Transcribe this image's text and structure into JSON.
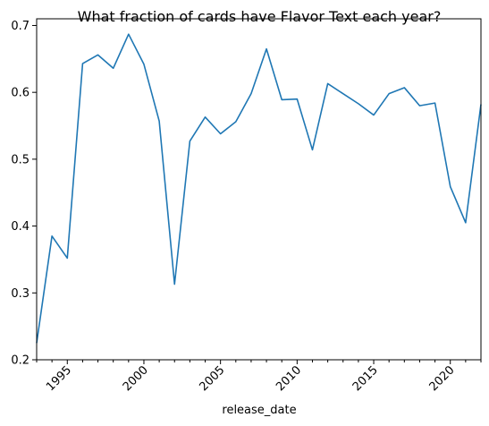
{
  "chart_data": {
    "type": "line",
    "title": "What fraction of cards have Flavor Text each year?",
    "xlabel": "release_date",
    "ylabel": "",
    "xlim": [
      1993,
      2022
    ],
    "ylim": [
      0.2,
      0.71
    ],
    "x_ticks": [
      {
        "value": 1995,
        "label": "1995"
      },
      {
        "value": 2000,
        "label": "2000"
      },
      {
        "value": 2005,
        "label": "2005"
      },
      {
        "value": 2010,
        "label": "2010"
      },
      {
        "value": 2015,
        "label": "2015"
      },
      {
        "value": 2020,
        "label": "2020"
      }
    ],
    "y_ticks": [
      {
        "value": 0.2,
        "label": "0.2"
      },
      {
        "value": 0.3,
        "label": "0.3"
      },
      {
        "value": 0.4,
        "label": "0.4"
      },
      {
        "value": 0.5,
        "label": "0.5"
      },
      {
        "value": 0.6,
        "label": "0.6"
      },
      {
        "value": 0.7,
        "label": "0.7"
      }
    ],
    "grid": false,
    "series": [
      {
        "color": "#1f77b4",
        "x": [
          1993,
          1994,
          1995,
          1996,
          1997,
          1998,
          1999,
          2000,
          2001,
          2002,
          2003,
          2004,
          2005,
          2006,
          2007,
          2008,
          2009,
          2010,
          2011,
          2012,
          2013,
          2014,
          2015,
          2016,
          2017,
          2018,
          2019,
          2020,
          2021,
          2022
        ],
        "y": [
          0.225,
          0.385,
          0.352,
          0.643,
          0.656,
          0.636,
          0.687,
          0.642,
          0.557,
          0.313,
          0.527,
          0.563,
          0.538,
          0.556,
          0.598,
          0.665,
          0.589,
          0.59,
          0.514,
          0.613,
          0.598,
          0.583,
          0.566,
          0.598,
          0.607,
          0.58,
          0.584,
          0.459,
          0.405,
          0.582
        ]
      }
    ]
  }
}
